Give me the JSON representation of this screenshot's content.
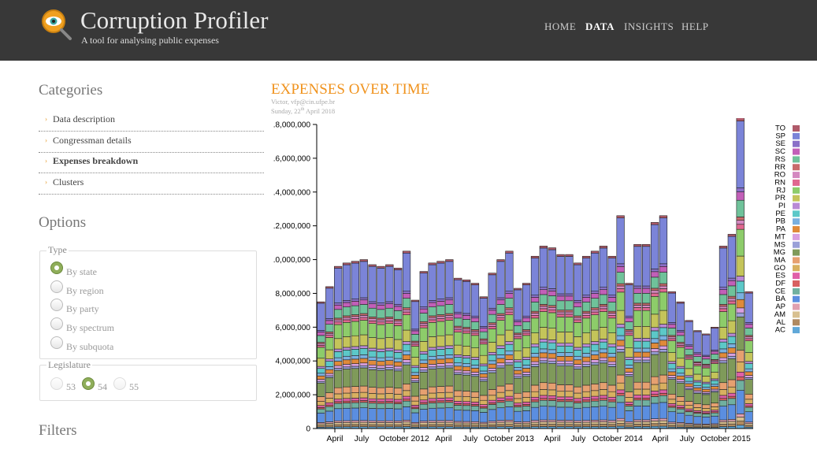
{
  "header": {
    "title": "Corruption Profiler",
    "subtitle": "A tool for analysing public expenses",
    "nav": [
      "HOME",
      "DATA",
      "INSIGHTS",
      "HELP"
    ],
    "active_nav": "DATA"
  },
  "sidebar": {
    "categories_heading": "Categories",
    "categories": [
      "Data description",
      "Congressman details",
      "Expenses breakdown",
      "Clusters"
    ],
    "active_category": "Expenses breakdown",
    "options_heading": "Options",
    "type_legend": "Type",
    "type_options": [
      "By state",
      "By region",
      "By party",
      "By spectrum",
      "By subquota"
    ],
    "type_selected": "By state",
    "legislature_legend": "Legislature",
    "legislature_options": [
      "53",
      "54",
      "55"
    ],
    "legislature_selected": "54",
    "filters_heading": "Filters"
  },
  "chart_meta": {
    "author": "Victor, vfp@cin.ufpe.br",
    "date_prefix": "Sunday, 22",
    "date_sup": "th",
    "date_suffix": " April 2018"
  },
  "chart_data": {
    "type": "bar",
    "stacked": true,
    "title": "EXPENSES OVER TIME",
    "ylim": [
      0,
      18000000
    ],
    "yticks": [
      "0",
      "2,000,000",
      "4,000,000",
      "6,000,000",
      "8,000,000",
      ".0,000,000",
      ".2,000,000",
      ".4,000,000",
      ".6,000,000",
      ".8,000,000"
    ],
    "xticks": [
      "April",
      "July",
      "October 2012",
      "April",
      "July",
      "October 2013",
      "April",
      "July",
      "October 2014",
      "April",
      "July",
      "October 2015"
    ],
    "totals": [
      7500000,
      8400000,
      9600000,
      9800000,
      9900000,
      10000000,
      9700000,
      9600000,
      9700000,
      9500000,
      10500000,
      7600000,
      9300000,
      9800000,
      9900000,
      10000000,
      8900000,
      8800000,
      8600000,
      7800000,
      9200000,
      10000000,
      10500000,
      8300000,
      8600000,
      10200000,
      10800000,
      10700000,
      10300000,
      10300000,
      9800000,
      10200000,
      10500000,
      10800000,
      10200000,
      12600000,
      8600000,
      10900000,
      10900000,
      12200000,
      12600000,
      8100000,
      7500000,
      6400000,
      5800000,
      5600000,
      6000000,
      10800000,
      11500000,
      18400000,
      8100000
    ],
    "legend_position": "right",
    "legend": [
      "TO",
      "SP",
      "SE",
      "SC",
      "RS",
      "RR",
      "RO",
      "RN",
      "RJ",
      "PR",
      "PI",
      "PE",
      "PB",
      "PA",
      "MT",
      "MS",
      "MG",
      "MA",
      "GO",
      "ES",
      "DF",
      "CE",
      "BA",
      "AP",
      "AM",
      "AL",
      "AC"
    ],
    "colors": {
      "TO": "#b05a6a",
      "SP": "#7b84d8",
      "SE": "#8a6fc8",
      "SC": "#c25fb8",
      "RS": "#6fc29a",
      "RR": "#c96b6b",
      "RO": "#d488c0",
      "RN": "#e06890",
      "RJ": "#8dcc6a",
      "PR": "#c4c45a",
      "PI": "#b98ad6",
      "PE": "#5cc8c8",
      "PB": "#7ab0e0",
      "PA": "#e08a3a",
      "MT": "#d9a0e0",
      "MS": "#9aa0d8",
      "MG": "#7f9a5a",
      "MA": "#e6a070",
      "GO": "#d8b060",
      "ES": "#e060a8",
      "DF": "#d86060",
      "CE": "#70b0a0",
      "BA": "#5b8ee0",
      "AP": "#e0a0b0",
      "AM": "#d8c090",
      "AL": "#b08a60",
      "AC": "#60a8d8"
    },
    "shares": {
      "AC": 0.01,
      "AL": 0.012,
      "AM": 0.012,
      "AP": 0.01,
      "BA": 0.07,
      "CE": 0.03,
      "DF": 0.01,
      "ES": 0.015,
      "GO": 0.03,
      "MA": 0.035,
      "MG": 0.1,
      "MS": 0.012,
      "MT": 0.015,
      "PA": 0.025,
      "PB": 0.02,
      "PE": 0.035,
      "PI": 0.015,
      "PR": 0.06,
      "RJ": 0.08,
      "RN": 0.015,
      "RO": 0.012,
      "RR": 0.01,
      "RS": 0.05,
      "SC": 0.025,
      "SE": 0.012,
      "SP": 0.2,
      "TO": 0.01
    }
  }
}
